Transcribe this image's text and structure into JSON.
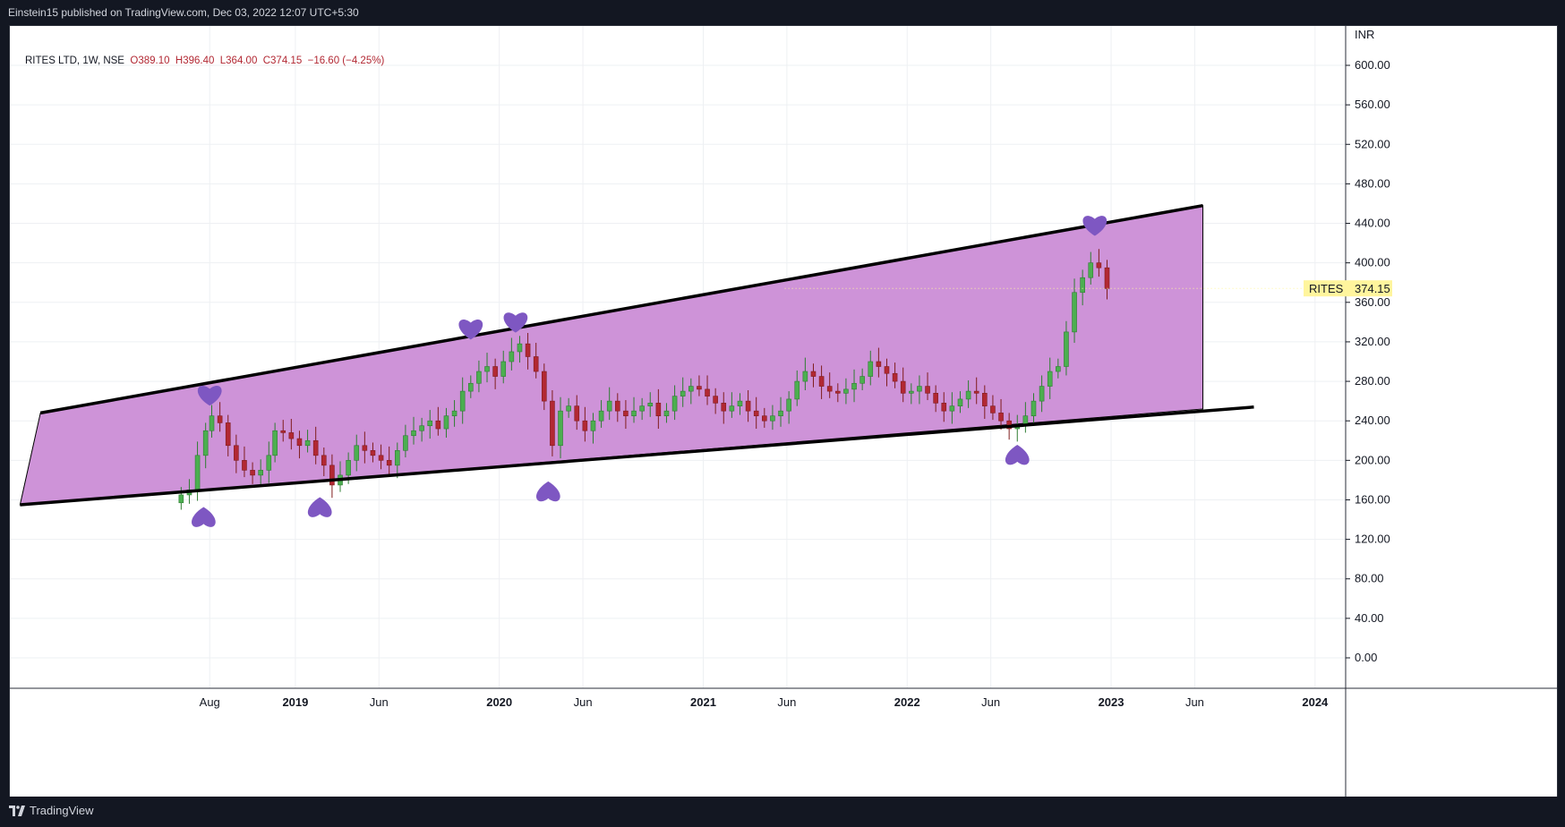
{
  "header": {
    "publisher_line": "Einstein15 published on TradingView.com, Dec 03, 2022 12:07 UTC+5:30"
  },
  "legend": {
    "symbol_info": "RITES LTD, 1W, NSE",
    "open": "O389.10",
    "high": "H396.40",
    "low": "L364.00",
    "close": "C374.15",
    "change": "−16.60 (−4.25%)"
  },
  "price_axis": {
    "currency": "INR",
    "ticks": [
      "600.00",
      "560.00",
      "520.00",
      "480.00",
      "440.00",
      "400.00",
      "360.00",
      "320.00",
      "280.00",
      "240.00",
      "200.00",
      "160.00",
      "120.00",
      "80.00",
      "40.00",
      "0.00"
    ]
  },
  "last_price_label": {
    "symbol": "RITES",
    "value": "374.15",
    "color": "#fff59d"
  },
  "footer": {
    "brand": "TradingView"
  },
  "colors": {
    "channel_fill": "#ce93d8",
    "trendline": "#000000",
    "heart": "#7e57c2",
    "candle_up": "#4caf50",
    "candle_down": "#b22833"
  },
  "chart_data": {
    "type": "candlestick",
    "symbol": "RITES LTD",
    "interval": "1W",
    "exchange": "NSE",
    "ylim": [
      -30,
      660
    ],
    "x_ticks": [
      {
        "label": "Aug",
        "t": 2018.58,
        "bold": false
      },
      {
        "label": "2019",
        "t": 2019.0,
        "bold": true
      },
      {
        "label": "Jun",
        "t": 2019.41,
        "bold": false
      },
      {
        "label": "2020",
        "t": 2020.0,
        "bold": true
      },
      {
        "label": "Jun",
        "t": 2020.41,
        "bold": false
      },
      {
        "label": "2021",
        "t": 2021.0,
        "bold": true
      },
      {
        "label": "Jun",
        "t": 2021.41,
        "bold": false
      },
      {
        "label": "2022",
        "t": 2022.0,
        "bold": true
      },
      {
        "label": "Jun",
        "t": 2022.41,
        "bold": false
      },
      {
        "label": "2023",
        "t": 2023.0,
        "bold": true
      },
      {
        "label": "Jun",
        "t": 2023.41,
        "bold": false
      },
      {
        "label": "2024",
        "t": 2024.0,
        "bold": true
      }
    ],
    "xlim": [
      2017.6,
      2024.15
    ],
    "closes": [
      [
        2018.44,
        165
      ],
      [
        2018.48,
        170
      ],
      [
        2018.52,
        205
      ],
      [
        2018.56,
        230
      ],
      [
        2018.59,
        245
      ],
      [
        2018.63,
        238
      ],
      [
        2018.67,
        215
      ],
      [
        2018.71,
        200
      ],
      [
        2018.75,
        190
      ],
      [
        2018.79,
        185
      ],
      [
        2018.83,
        190
      ],
      [
        2018.87,
        205
      ],
      [
        2018.9,
        230
      ],
      [
        2018.94,
        228
      ],
      [
        2018.98,
        222
      ],
      [
        2019.02,
        215
      ],
      [
        2019.06,
        220
      ],
      [
        2019.1,
        205
      ],
      [
        2019.14,
        195
      ],
      [
        2019.18,
        175
      ],
      [
        2019.22,
        185
      ],
      [
        2019.26,
        200
      ],
      [
        2019.3,
        215
      ],
      [
        2019.34,
        210
      ],
      [
        2019.38,
        205
      ],
      [
        2019.42,
        200
      ],
      [
        2019.46,
        195
      ],
      [
        2019.5,
        210
      ],
      [
        2019.54,
        225
      ],
      [
        2019.58,
        230
      ],
      [
        2019.62,
        235
      ],
      [
        2019.66,
        240
      ],
      [
        2019.7,
        232
      ],
      [
        2019.74,
        245
      ],
      [
        2019.78,
        250
      ],
      [
        2019.82,
        270
      ],
      [
        2019.86,
        278
      ],
      [
        2019.9,
        290
      ],
      [
        2019.94,
        295
      ],
      [
        2019.98,
        285
      ],
      [
        2020.02,
        300
      ],
      [
        2020.06,
        310
      ],
      [
        2020.1,
        318
      ],
      [
        2020.14,
        305
      ],
      [
        2020.18,
        290
      ],
      [
        2020.22,
        260
      ],
      [
        2020.26,
        215
      ],
      [
        2020.3,
        250
      ],
      [
        2020.34,
        255
      ],
      [
        2020.38,
        240
      ],
      [
        2020.42,
        230
      ],
      [
        2020.46,
        240
      ],
      [
        2020.5,
        250
      ],
      [
        2020.54,
        260
      ],
      [
        2020.58,
        250
      ],
      [
        2020.62,
        245
      ],
      [
        2020.66,
        250
      ],
      [
        2020.7,
        255
      ],
      [
        2020.74,
        258
      ],
      [
        2020.78,
        245
      ],
      [
        2020.82,
        250
      ],
      [
        2020.86,
        265
      ],
      [
        2020.9,
        270
      ],
      [
        2020.94,
        275
      ],
      [
        2020.98,
        272
      ],
      [
        2021.02,
        265
      ],
      [
        2021.06,
        258
      ],
      [
        2021.1,
        250
      ],
      [
        2021.14,
        255
      ],
      [
        2021.18,
        260
      ],
      [
        2021.22,
        250
      ],
      [
        2021.26,
        245
      ],
      [
        2021.3,
        240
      ],
      [
        2021.34,
        245
      ],
      [
        2021.38,
        250
      ],
      [
        2021.42,
        262
      ],
      [
        2021.46,
        280
      ],
      [
        2021.5,
        290
      ],
      [
        2021.54,
        285
      ],
      [
        2021.58,
        275
      ],
      [
        2021.62,
        270
      ],
      [
        2021.66,
        268
      ],
      [
        2021.7,
        272
      ],
      [
        2021.74,
        278
      ],
      [
        2021.78,
        285
      ],
      [
        2021.82,
        300
      ],
      [
        2021.86,
        295
      ],
      [
        2021.9,
        288
      ],
      [
        2021.94,
        280
      ],
      [
        2021.98,
        268
      ],
      [
        2022.02,
        270
      ],
      [
        2022.06,
        275
      ],
      [
        2022.1,
        268
      ],
      [
        2022.14,
        258
      ],
      [
        2022.18,
        250
      ],
      [
        2022.22,
        255
      ],
      [
        2022.26,
        262
      ],
      [
        2022.3,
        270
      ],
      [
        2022.34,
        268
      ],
      [
        2022.38,
        255
      ],
      [
        2022.42,
        248
      ],
      [
        2022.46,
        240
      ],
      [
        2022.5,
        232
      ],
      [
        2022.54,
        235
      ],
      [
        2022.58,
        245
      ],
      [
        2022.62,
        260
      ],
      [
        2022.66,
        275
      ],
      [
        2022.7,
        290
      ],
      [
        2022.74,
        295
      ],
      [
        2022.78,
        330
      ],
      [
        2022.82,
        370
      ],
      [
        2022.86,
        385
      ],
      [
        2022.9,
        400
      ],
      [
        2022.94,
        395
      ],
      [
        2022.98,
        374
      ]
    ],
    "upper_trendline": [
      [
        2017.75,
        248
      ],
      [
        2023.45,
        458
      ]
    ],
    "lower_trendline": [
      [
        2017.65,
        155
      ],
      [
        2023.7,
        254
      ]
    ],
    "channel": [
      [
        2017.65,
        155
      ],
      [
        2017.75,
        248
      ],
      [
        2023.45,
        458
      ],
      [
        2023.45,
        252
      ]
    ],
    "last_price": 374.15,
    "heart_markers": [
      {
        "t": 2018.58,
        "v": 268,
        "dir": "top"
      },
      {
        "t": 2019.12,
        "v": 150,
        "dir": "bottom"
      },
      {
        "t": 2019.86,
        "v": 335,
        "dir": "top"
      },
      {
        "t": 2020.08,
        "v": 342,
        "dir": "top"
      },
      {
        "t": 2020.24,
        "v": 166,
        "dir": "bottom"
      },
      {
        "t": 2022.54,
        "v": 203,
        "dir": "bottom"
      },
      {
        "t": 2022.92,
        "v": 440,
        "dir": "top"
      },
      {
        "t": 2018.55,
        "v": 140,
        "dir": "bottom"
      }
    ]
  }
}
